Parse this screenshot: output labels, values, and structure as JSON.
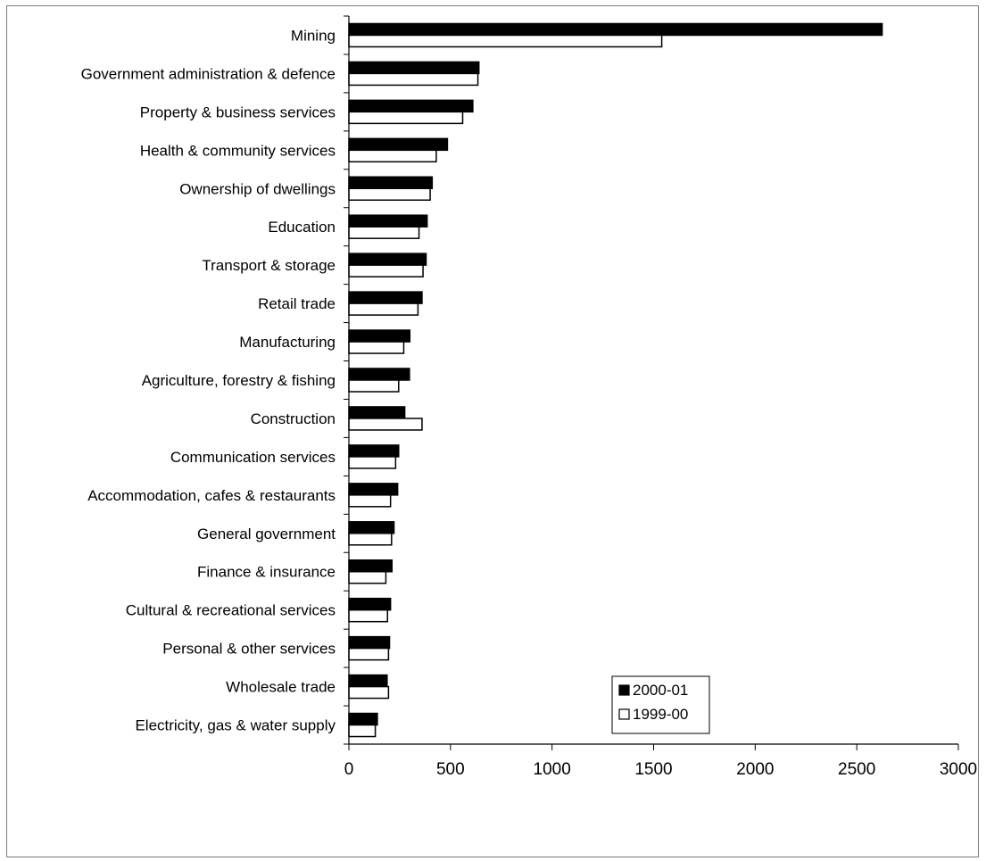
{
  "chart_data": {
    "type": "bar",
    "orientation": "horizontal",
    "categories": [
      "Mining",
      "Government administration & defence",
      "Property & business services",
      "Health & community services",
      "Ownership of dwellings",
      "Education",
      "Transport & storage",
      "Retail trade",
      "Manufacturing",
      "Agriculture, forestry & fishing",
      "Construction",
      "Communication services",
      "Accommodation, cafes & restaurants",
      "General government",
      "Finance & insurance",
      "Cultural & recreational services",
      "Personal & other services",
      "Wholesale trade",
      "Electricity, gas & water supply"
    ],
    "series": [
      {
        "name": "2000-01",
        "color": "#000000",
        "values": [
          2625,
          640,
          610,
          485,
          410,
          385,
          380,
          360,
          300,
          298,
          275,
          245,
          240,
          222,
          212,
          205,
          200,
          188,
          140
        ]
      },
      {
        "name": "1999-00",
        "color": "#ffffff",
        "values": [
          1540,
          635,
          560,
          430,
          400,
          345,
          365,
          340,
          270,
          245,
          360,
          230,
          205,
          210,
          182,
          190,
          195,
          195,
          130
        ]
      }
    ],
    "xticks": [
      "0",
      "500",
      "1000",
      "1500",
      "2000",
      "2500",
      "3000"
    ],
    "xlim": [
      0,
      3000
    ],
    "title": "",
    "xlabel": "",
    "ylabel": "",
    "grid": false,
    "legend_position": "bottom-right"
  }
}
